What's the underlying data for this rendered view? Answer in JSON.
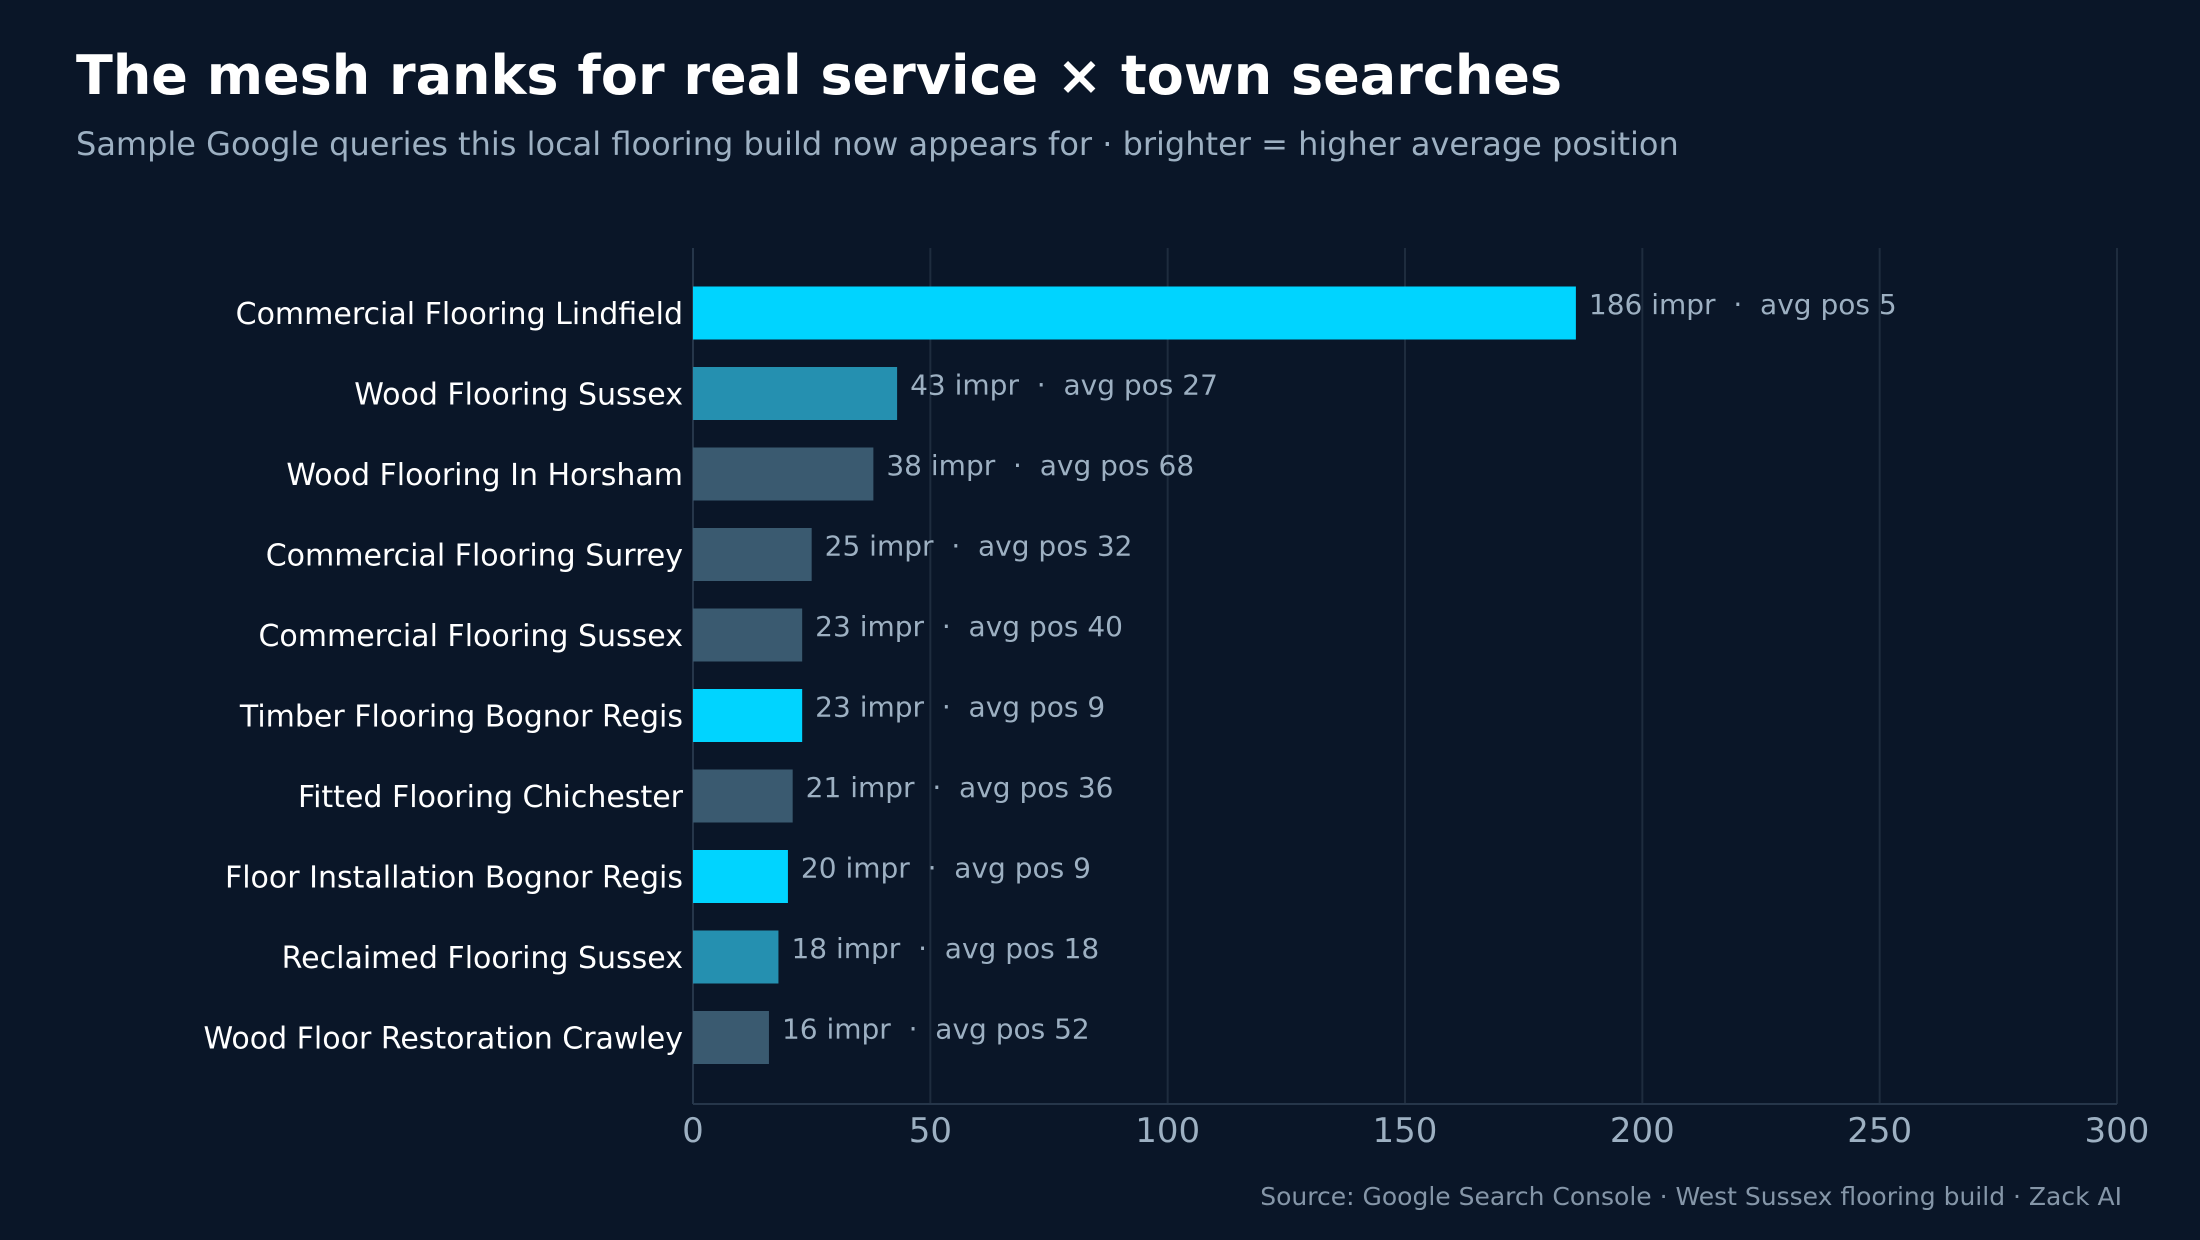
{
  "title": "The mesh ranks for real service × town searches",
  "subtitle": "Sample Google queries this local flooring build now appears for · brighter = higher average position",
  "source": "Source: Google Search Console  ·  West Sussex flooring build  ·  Zack AI",
  "colors": {
    "background": "#0a1628",
    "bright": "#00d4ff",
    "mid": "#2590b0",
    "dim": "#3a5a70",
    "grid": "#1e2c3e"
  },
  "chart_data": {
    "type": "bar",
    "orientation": "horizontal",
    "categories": [
      "Commercial Flooring Lindfield",
      "Wood Flooring Sussex",
      "Wood Flooring In Horsham",
      "Commercial Flooring Surrey",
      "Commercial Flooring Sussex",
      "Timber Flooring Bognor Regis",
      "Fitted Flooring Chichester",
      "Floor Installation Bognor Regis",
      "Reclaimed Flooring Sussex",
      "Wood Floor Restoration Crawley"
    ],
    "values": [
      186,
      43,
      38,
      25,
      23,
      23,
      21,
      20,
      18,
      16
    ],
    "avg_positions": [
      5,
      27,
      68,
      32,
      40,
      9,
      36,
      9,
      18,
      52
    ],
    "value_labels": [
      "186 impr  ·  avg pos 5",
      "43 impr  ·  avg pos 27",
      "38 impr  ·  avg pos 68",
      "25 impr  ·  avg pos 32",
      "23 impr  ·  avg pos 40",
      "23 impr  ·  avg pos 9",
      "21 impr  ·  avg pos 36",
      "20 impr  ·  avg pos 9",
      "18 impr  ·  avg pos 18",
      "16 impr  ·  avg pos 52"
    ],
    "xlim": [
      0,
      300
    ],
    "xticks": [
      0,
      50,
      100,
      150,
      200,
      250,
      300
    ],
    "xlabel": "",
    "ylabel": "",
    "grid": "vertical"
  }
}
